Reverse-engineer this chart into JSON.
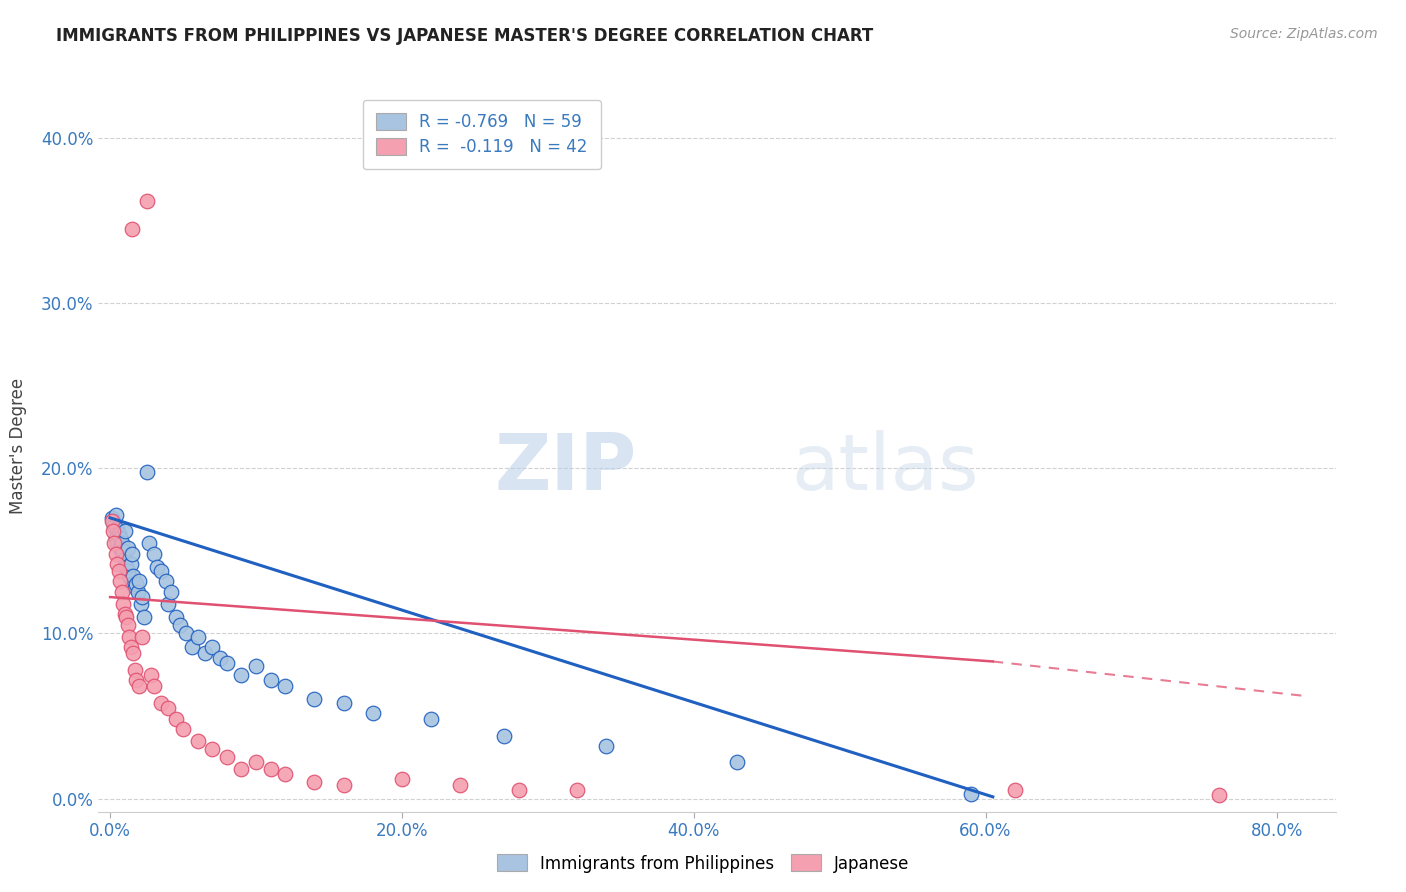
{
  "title": "IMMIGRANTS FROM PHILIPPINES VS JAPANESE MASTER'S DEGREE CORRELATION CHART",
  "source": "Source: ZipAtlas.com",
  "ylabel": "Master's Degree",
  "xlabel_ticks": [
    "0.0%",
    "20.0%",
    "40.0%",
    "60.0%",
    "80.0%"
  ],
  "xlabel_vals": [
    0.0,
    0.2,
    0.4,
    0.6,
    0.8
  ],
  "ylabel_ticks": [
    "0.0%",
    "10.0%",
    "20.0%",
    "30.0%",
    "40.0%"
  ],
  "ylabel_vals": [
    0.0,
    0.1,
    0.2,
    0.3,
    0.4
  ],
  "xlim": [
    -0.008,
    0.84
  ],
  "ylim": [
    -0.008,
    0.435
  ],
  "legend_blue_label": "R = -0.769   N = 59",
  "legend_pink_label": "R =  -0.119   N = 42",
  "blue_color": "#a8c4e0",
  "pink_color": "#f4a0b0",
  "blue_line_color": "#2060c0",
  "pink_line_color": "#e05070",
  "watermark_zip": "ZIP",
  "watermark_atlas": "atlas",
  "grid_color": "#cccccc",
  "background_color": "#ffffff",
  "blue_line_x0": 0.0,
  "blue_line_x1": 0.605,
  "blue_line_y0": 0.17,
  "blue_line_y1": 0.001,
  "pink_line_x0": 0.0,
  "pink_line_x1": 0.605,
  "pink_line_x2": 0.82,
  "pink_line_y0": 0.122,
  "pink_line_y1": 0.083,
  "pink_line_y2": 0.062,
  "blue_x": [
    0.001,
    0.002,
    0.003,
    0.004,
    0.004,
    0.005,
    0.005,
    0.006,
    0.007,
    0.007,
    0.008,
    0.008,
    0.009,
    0.01,
    0.01,
    0.011,
    0.012,
    0.012,
    0.013,
    0.014,
    0.015,
    0.015,
    0.016,
    0.017,
    0.018,
    0.019,
    0.02,
    0.021,
    0.022,
    0.023,
    0.025,
    0.027,
    0.03,
    0.032,
    0.035,
    0.038,
    0.04,
    0.042,
    0.045,
    0.048,
    0.052,
    0.056,
    0.06,
    0.065,
    0.07,
    0.075,
    0.08,
    0.09,
    0.1,
    0.11,
    0.12,
    0.14,
    0.16,
    0.18,
    0.22,
    0.27,
    0.34,
    0.43,
    0.59
  ],
  "blue_y": [
    0.17,
    0.168,
    0.165,
    0.172,
    0.158,
    0.163,
    0.155,
    0.16,
    0.158,
    0.152,
    0.155,
    0.148,
    0.15,
    0.162,
    0.145,
    0.14,
    0.152,
    0.138,
    0.135,
    0.142,
    0.148,
    0.13,
    0.135,
    0.128,
    0.13,
    0.125,
    0.132,
    0.118,
    0.122,
    0.11,
    0.198,
    0.155,
    0.148,
    0.14,
    0.138,
    0.132,
    0.118,
    0.125,
    0.11,
    0.105,
    0.1,
    0.092,
    0.098,
    0.088,
    0.092,
    0.085,
    0.082,
    0.075,
    0.08,
    0.072,
    0.068,
    0.06,
    0.058,
    0.052,
    0.048,
    0.038,
    0.032,
    0.022,
    0.003
  ],
  "pink_x": [
    0.001,
    0.002,
    0.003,
    0.004,
    0.005,
    0.006,
    0.007,
    0.008,
    0.009,
    0.01,
    0.011,
    0.012,
    0.013,
    0.014,
    0.015,
    0.016,
    0.017,
    0.018,
    0.02,
    0.022,
    0.025,
    0.028,
    0.03,
    0.035,
    0.04,
    0.045,
    0.05,
    0.06,
    0.07,
    0.08,
    0.09,
    0.1,
    0.11,
    0.12,
    0.14,
    0.16,
    0.2,
    0.24,
    0.28,
    0.32,
    0.62,
    0.76
  ],
  "pink_y": [
    0.168,
    0.162,
    0.155,
    0.148,
    0.142,
    0.138,
    0.132,
    0.125,
    0.118,
    0.112,
    0.11,
    0.105,
    0.098,
    0.092,
    0.345,
    0.088,
    0.078,
    0.072,
    0.068,
    0.098,
    0.362,
    0.075,
    0.068,
    0.058,
    0.055,
    0.048,
    0.042,
    0.035,
    0.03,
    0.025,
    0.018,
    0.022,
    0.018,
    0.015,
    0.01,
    0.008,
    0.012,
    0.008,
    0.005,
    0.005,
    0.005,
    0.002
  ]
}
